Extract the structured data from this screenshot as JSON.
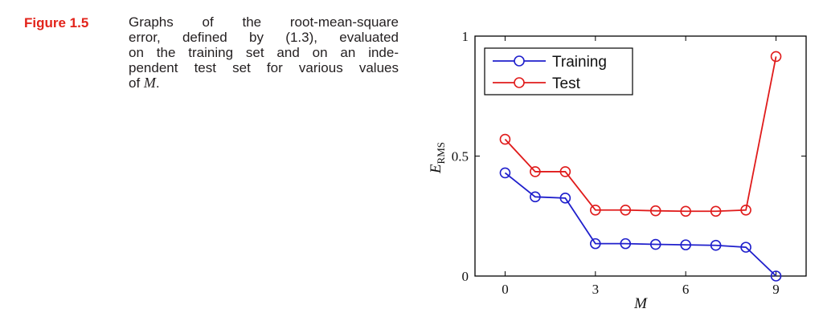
{
  "caption": {
    "figure_label": "Figure 1.5",
    "label_color": "#e2231a",
    "lines": [
      "Graphs of the root-mean-square",
      "error, defined by (1.3), evaluated",
      "on the training set and on an inde-",
      "pendent test set for various values"
    ],
    "last_line_prefix": "of ",
    "last_line_var": "M",
    "last_line_suffix": "."
  },
  "chart_data": {
    "type": "line",
    "xlabel": "M",
    "ylabel_main": "E",
    "ylabel_sub": "RMS",
    "xlim": [
      -1,
      10
    ],
    "ylim": [
      0,
      1
    ],
    "xticks": [
      0,
      3,
      6,
      9
    ],
    "yticks": [
      {
        "value": 0,
        "label": "0"
      },
      {
        "value": 0.5,
        "label": "0.5"
      },
      {
        "value": 1,
        "label": "1"
      }
    ],
    "grid": false,
    "legend_position": "top-left",
    "series": [
      {
        "name": "Training",
        "color": "#1f1fcc",
        "x": [
          0,
          1,
          2,
          3,
          4,
          5,
          6,
          7,
          8,
          9
        ],
        "y": [
          0.43,
          0.33,
          0.325,
          0.135,
          0.135,
          0.132,
          0.13,
          0.128,
          0.12,
          0.0
        ]
      },
      {
        "name": "Test",
        "color": "#e01b1b",
        "x": [
          0,
          1,
          2,
          3,
          4,
          5,
          6,
          7,
          8,
          9
        ],
        "y": [
          0.57,
          0.435,
          0.435,
          0.275,
          0.275,
          0.272,
          0.27,
          0.27,
          0.275,
          0.915
        ]
      }
    ]
  }
}
